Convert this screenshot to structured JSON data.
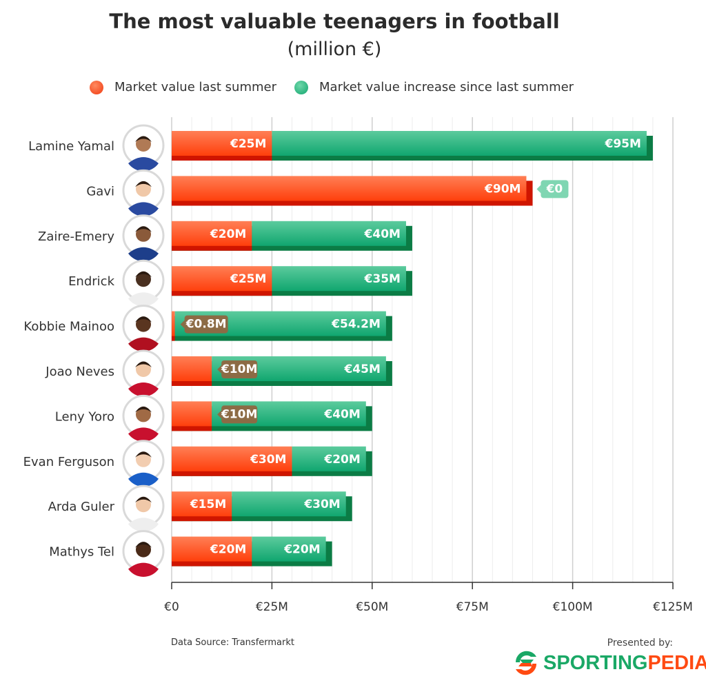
{
  "chart_data": {
    "type": "bar",
    "orientation": "horizontal",
    "stacked": true,
    "title": "The most valuable teenagers in football",
    "subtitle": "(million €)",
    "categories": [
      "Lamine Yamal",
      "Gavi",
      "Zaire-Emery",
      "Endrick",
      "Kobbie Mainoo",
      "Joao Neves",
      "Leny Yoro",
      "Evan Ferguson",
      "Arda Guler",
      "Mathys Tel"
    ],
    "series": [
      {
        "name": "Market value last summer",
        "color": "#ff5a26",
        "values": [
          25,
          90,
          20,
          25,
          0.8,
          10,
          10,
          30,
          15,
          20
        ],
        "labels": [
          "€25M",
          "€90M",
          "€20M",
          "€25M",
          "€0.8M",
          "€10M",
          "€10M",
          "€30M",
          "€15M",
          "€20M"
        ]
      },
      {
        "name": "Market value increase since last summer",
        "color": "#2ebd85",
        "values": [
          95,
          0,
          40,
          35,
          54.2,
          45,
          40,
          20,
          30,
          20
        ],
        "labels": [
          "€95M",
          "€0",
          "€40M",
          "€35M",
          "€54.2M",
          "€45M",
          "€40M",
          "€20M",
          "€30M",
          "€20M"
        ]
      }
    ],
    "xlim": [
      0,
      125
    ],
    "xticks": [
      "€0",
      "€25M",
      "€50M",
      "€75M",
      "€100M",
      "€125M"
    ],
    "xtick_values": [
      0,
      25,
      50,
      75,
      100,
      125
    ],
    "minor_grid_step": 5,
    "grid": true,
    "legend_position": "top"
  },
  "footer": {
    "source": "Data Source: Transfermarkt",
    "presented_by": "Presented by:",
    "logo_part1": "SPORTING",
    "logo_part2": "PEDIA"
  },
  "colors": {
    "red_dark": "#cf1500",
    "green_dark": "#0b7c45",
    "callout": "#8c6b45",
    "callout_zero": "#7fd6b2",
    "green_logo": "#1aa866",
    "orange_logo": "#ff4a12"
  }
}
